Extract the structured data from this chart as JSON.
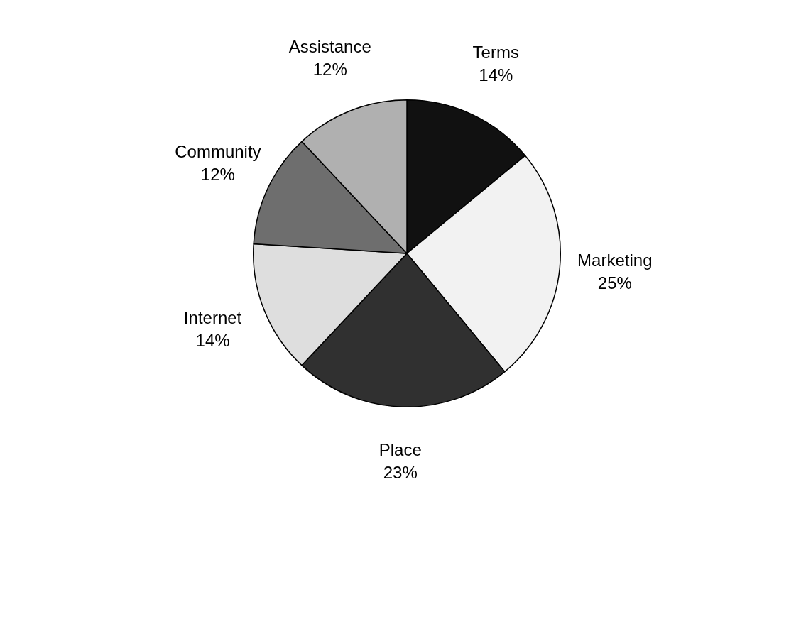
{
  "chart_data": {
    "type": "pie",
    "categories": [
      "Terms",
      "Marketing",
      "Place",
      "Internet",
      "Community",
      "Assistance"
    ],
    "values": [
      14,
      25,
      23,
      14,
      12,
      12
    ],
    "value_labels": [
      "14%",
      "25%",
      "23%",
      "14%",
      "12%",
      "12%"
    ],
    "colors": [
      "#111111",
      "#f2f2f2",
      "#303030",
      "#dedede",
      "#6e6e6e",
      "#b0b0b0"
    ]
  }
}
